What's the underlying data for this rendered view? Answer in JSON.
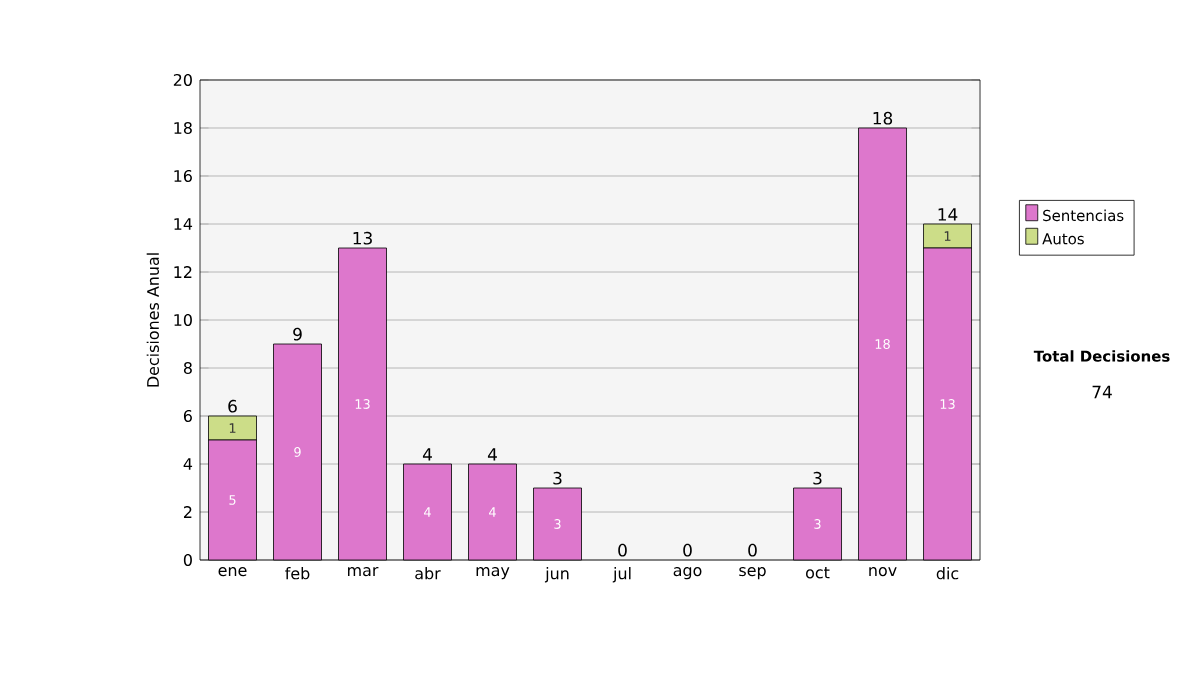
{
  "chart_data": {
    "type": "bar",
    "stacked": true,
    "ylabel": "Decisiones Anual",
    "categories": [
      "ene",
      "feb",
      "mar",
      "abr",
      "may",
      "jun",
      "jul",
      "ago",
      "sep",
      "oct",
      "nov",
      "dic"
    ],
    "series": [
      {
        "name": "Sentencias",
        "color": "#dd77cc",
        "values": [
          5,
          9,
          13,
          4,
          4,
          3,
          0,
          0,
          0,
          3,
          18,
          13
        ],
        "value_labels": [
          "5",
          "9",
          "13",
          "4",
          "4",
          "3",
          null,
          null,
          null,
          "3",
          "18",
          "13"
        ]
      },
      {
        "name": "Autos",
        "color": "#ccdd88",
        "values": [
          1,
          0,
          0,
          0,
          0,
          0,
          0,
          0,
          0,
          0,
          0,
          1
        ],
        "value_labels": [
          "1",
          null,
          null,
          null,
          null,
          null,
          null,
          null,
          null,
          null,
          null,
          "1"
        ]
      }
    ],
    "totals": [
      "6",
      "9",
      "13",
      "4",
      "4",
      "3",
      "0",
      "0",
      "0",
      "3",
      "18",
      "14"
    ],
    "ylim": [
      0,
      20
    ],
    "yticks": [
      0,
      2,
      4,
      6,
      8,
      10,
      12,
      14,
      16,
      18,
      20
    ],
    "grid": "y",
    "legend": "right",
    "annotations": [
      "Total Decisiones",
      "74"
    ]
  }
}
